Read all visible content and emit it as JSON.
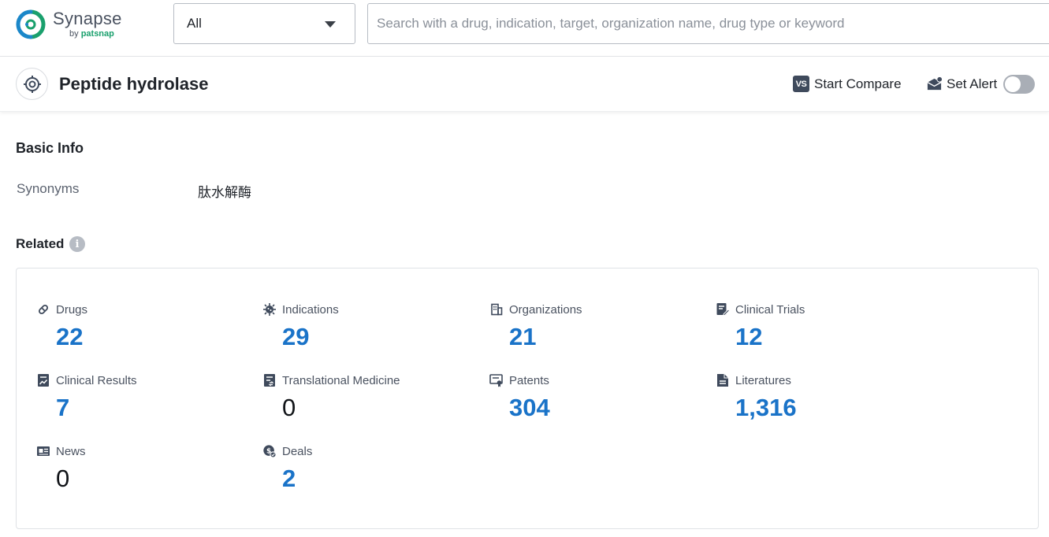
{
  "app": {
    "brand_name": "Synapse",
    "brand_sub_prefix": "by",
    "brand_sub_name": "patsnap"
  },
  "search": {
    "scope_value": "All",
    "placeholder": "Search with a drug, indication, target, organization name, drug type or keyword",
    "value": ""
  },
  "header": {
    "title": "Peptide hydrolase",
    "compare_label": "Start Compare",
    "compare_icon_text": "VS",
    "alert_label": "Set Alert",
    "alert_enabled": false
  },
  "basic_info": {
    "title": "Basic Info",
    "synonyms_label": "Synonyms",
    "synonyms_value": "肽水解酶"
  },
  "related": {
    "title": "Related",
    "info_icon_text": "i",
    "items": [
      {
        "label": "Drugs",
        "value": "22",
        "icon": "pill-icon"
      },
      {
        "label": "Indications",
        "value": "29",
        "icon": "virus-icon"
      },
      {
        "label": "Organizations",
        "value": "21",
        "icon": "building-icon"
      },
      {
        "label": "Clinical Trials",
        "value": "12",
        "icon": "trial-doc-icon"
      },
      {
        "label": "Clinical Results",
        "value": "7",
        "icon": "results-chart-icon"
      },
      {
        "label": "Translational Medicine",
        "value": "0",
        "icon": "translational-doc-icon"
      },
      {
        "label": "Patents",
        "value": "304",
        "icon": "patent-certificate-icon"
      },
      {
        "label": "Literatures",
        "value": "1,316",
        "icon": "literature-doc-icon"
      },
      {
        "label": "News",
        "value": "0",
        "icon": "newspaper-icon"
      },
      {
        "label": "Deals",
        "value": "2",
        "icon": "deal-money-icon"
      }
    ]
  },
  "colors": {
    "link_blue": "#1a73c8",
    "brand_green": "#1aa06d",
    "icon_dark": "#3f4a5c"
  }
}
